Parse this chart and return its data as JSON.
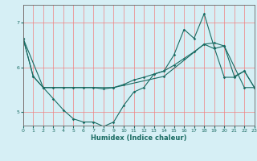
{
  "title": "",
  "xlabel": "Humidex (Indice chaleur)",
  "xlim": [
    0,
    23
  ],
  "ylim": [
    4.7,
    7.4
  ],
  "yticks": [
    5,
    6,
    7
  ],
  "xticks": [
    0,
    1,
    2,
    3,
    4,
    5,
    6,
    7,
    8,
    9,
    10,
    11,
    12,
    13,
    14,
    15,
    16,
    17,
    18,
    19,
    20,
    21,
    22,
    23
  ],
  "bg_color": "#d6eff5",
  "line_color": "#1a6b62",
  "grid_color": "#f08080",
  "lines": [
    {
      "x": [
        0,
        1,
        2,
        3,
        4,
        5,
        6,
        7,
        8,
        9,
        10,
        11,
        12,
        13,
        14,
        15,
        16,
        17,
        18,
        19,
        20,
        21,
        22,
        23
      ],
      "y": [
        6.65,
        5.8,
        5.55,
        5.55,
        5.55,
        5.55,
        5.55,
        5.55,
        5.52,
        5.55,
        5.62,
        5.72,
        5.78,
        5.85,
        5.92,
        6.05,
        6.2,
        6.35,
        6.52,
        6.55,
        6.48,
        5.8,
        5.92,
        5.55
      ]
    },
    {
      "x": [
        0,
        2,
        9,
        14,
        18,
        19,
        20,
        22,
        23
      ],
      "y": [
        6.65,
        5.55,
        5.55,
        5.8,
        6.52,
        6.42,
        6.48,
        5.55,
        5.55
      ]
    },
    {
      "x": [
        0,
        1,
        2,
        3,
        4,
        5,
        6,
        7,
        8,
        9,
        10,
        11,
        12,
        13,
        14,
        15,
        16,
        17,
        18,
        19,
        20,
        21,
        22,
        23
      ],
      "y": [
        6.65,
        5.8,
        5.55,
        5.3,
        5.05,
        4.85,
        4.78,
        4.78,
        4.68,
        4.78,
        5.15,
        5.45,
        5.55,
        5.85,
        5.92,
        6.28,
        6.85,
        6.65,
        7.2,
        6.45,
        5.78,
        5.78,
        5.92,
        5.55
      ]
    }
  ]
}
